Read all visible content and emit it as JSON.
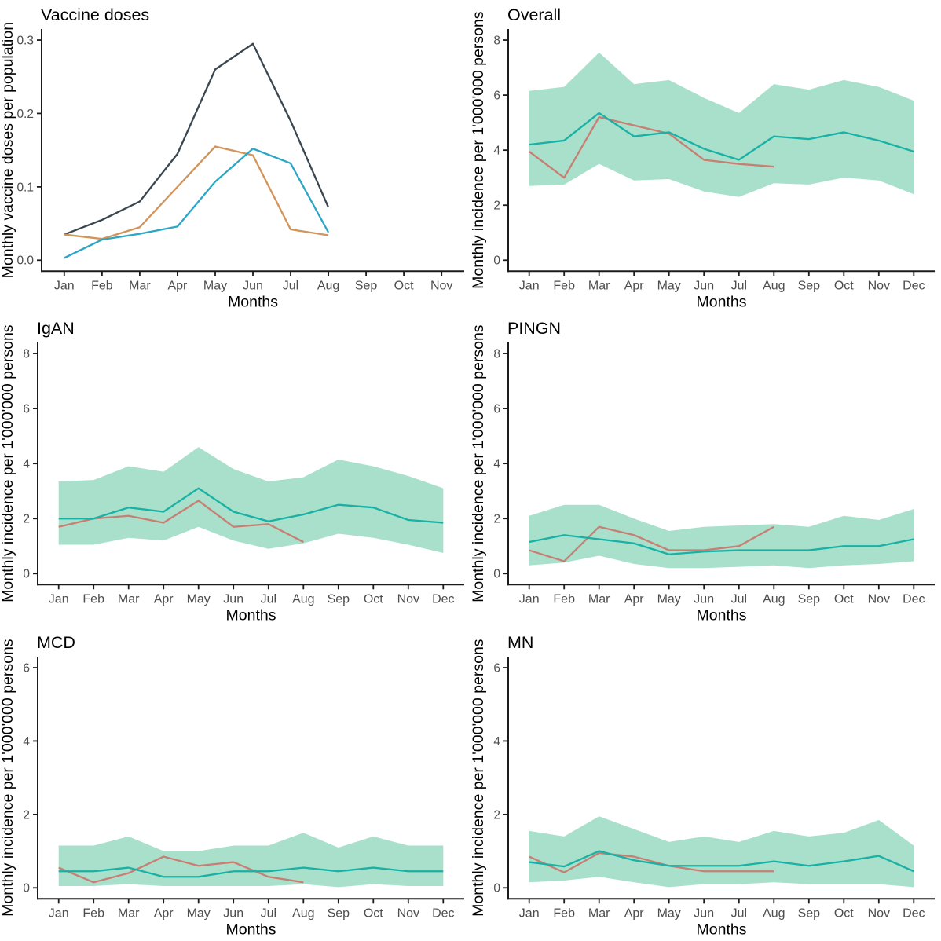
{
  "axis_style": {
    "axis_color": "#1B1B1B",
    "tick_label_color": "#4D4D4D",
    "text_color": "#000000",
    "ribbon_color": "#A9E0CB",
    "teal_line_color": "#18B1A5",
    "red_line_color": "#C87E73",
    "dark_line_color": "#3A4750",
    "orange_line_color": "#D1945A",
    "blue_line_color": "#2BA6C6"
  },
  "chart_data": [
    {
      "id": "vaccine-doses",
      "type": "line",
      "title": "Vaccine doses",
      "xlabel": "Months",
      "ylabel": "Monthly vaccine doses per population",
      "categories": [
        "Jan",
        "Feb",
        "Mar",
        "Apr",
        "May",
        "Jun",
        "Jul",
        "Aug",
        "Sep",
        "Oct",
        "Nov"
      ],
      "ylim": [
        0,
        0.3
      ],
      "yticks": {
        "values": [
          0,
          0.1,
          0.2,
          0.3
        ],
        "labels": [
          "0.0",
          "0.1",
          "0.2",
          "0.3"
        ]
      },
      "grid": false,
      "legend": "none",
      "series": [
        {
          "name": "dark-navy-line",
          "color": "#3A4750",
          "values": [
            0.035,
            0.055,
            0.08,
            0.145,
            0.26,
            0.295,
            0.19,
            0.072
          ]
        },
        {
          "name": "orange-line",
          "color": "#D1945A",
          "values": [
            0.035,
            0.029,
            0.045,
            0.1,
            0.155,
            0.143,
            0.042,
            0.034
          ]
        },
        {
          "name": "blue-line",
          "color": "#2BA6C6",
          "values": [
            0.003,
            0.028,
            0.036,
            0.046,
            0.107,
            0.152,
            0.132,
            0.038
          ]
        }
      ]
    },
    {
      "id": "overall",
      "type": "line",
      "title": "Overall",
      "xlabel": "Months",
      "ylabel": "Monthly incidence per 1'000'000 persons",
      "categories": [
        "Jan",
        "Feb",
        "Mar",
        "Apr",
        "May",
        "Jun",
        "Jul",
        "Aug",
        "Sep",
        "Oct",
        "Nov",
        "Dec"
      ],
      "ylim": [
        0,
        8
      ],
      "yticks": {
        "values": [
          0,
          2,
          4,
          6,
          8
        ],
        "labels": [
          "0",
          "2",
          "4",
          "6",
          "8"
        ]
      },
      "grid": false,
      "legend": "none",
      "band": {
        "name": "confidence-ribbon",
        "color": "#A9E0CB",
        "upper": [
          6.15,
          6.3,
          7.55,
          6.4,
          6.55,
          5.9,
          5.35,
          6.4,
          6.2,
          6.55,
          6.3,
          5.8
        ],
        "lower": [
          2.7,
          2.75,
          3.5,
          2.9,
          2.95,
          2.5,
          2.3,
          2.8,
          2.75,
          3.0,
          2.9,
          2.4
        ]
      },
      "series": [
        {
          "name": "red-line",
          "color": "#C87E73",
          "values": [
            3.95,
            3.0,
            5.2,
            4.9,
            4.6,
            3.65,
            3.5,
            3.4
          ]
        },
        {
          "name": "teal-line",
          "color": "#18B1A5",
          "values": [
            4.2,
            4.35,
            5.35,
            4.5,
            4.65,
            4.05,
            3.65,
            4.5,
            4.4,
            4.65,
            4.35,
            3.95
          ]
        }
      ]
    },
    {
      "id": "igan",
      "type": "line",
      "title": "IgAN",
      "xlabel": "Months",
      "ylabel": "Monthly incidence per 1'000'000 persons",
      "categories": [
        "Jan",
        "Feb",
        "Mar",
        "Apr",
        "May",
        "Jun",
        "Jul",
        "Aug",
        "Sep",
        "Oct",
        "Nov",
        "Dec"
      ],
      "ylim": [
        0,
        8
      ],
      "yticks": {
        "values": [
          0,
          2,
          4,
          6,
          8
        ],
        "labels": [
          "0",
          "2",
          "4",
          "6",
          "8"
        ]
      },
      "grid": false,
      "legend": "none",
      "band": {
        "name": "confidence-ribbon",
        "color": "#A9E0CB",
        "upper": [
          3.35,
          3.4,
          3.9,
          3.7,
          4.6,
          3.8,
          3.35,
          3.5,
          4.15,
          3.9,
          3.55,
          3.1
        ],
        "lower": [
          1.05,
          1.05,
          1.3,
          1.2,
          1.7,
          1.2,
          0.9,
          1.1,
          1.45,
          1.3,
          1.05,
          0.75
        ]
      },
      "series": [
        {
          "name": "red-line",
          "color": "#C87E73",
          "values": [
            1.7,
            2.0,
            2.1,
            1.85,
            2.65,
            1.7,
            1.8,
            1.15
          ]
        },
        {
          "name": "teal-line",
          "color": "#18B1A5",
          "values": [
            2.0,
            2.0,
            2.4,
            2.25,
            3.1,
            2.25,
            1.9,
            2.15,
            2.5,
            2.4,
            1.95,
            1.85
          ]
        }
      ]
    },
    {
      "id": "pingn",
      "type": "line",
      "title": "PINGN",
      "xlabel": "Months",
      "ylabel": "Monthly incidence per 1'000'000 persons",
      "categories": [
        "Jan",
        "Feb",
        "Mar",
        "Apr",
        "May",
        "Jun",
        "Jul",
        "Aug",
        "Sep",
        "Oct",
        "Nov",
        "Dec"
      ],
      "ylim": [
        0,
        8
      ],
      "yticks": {
        "values": [
          0,
          2,
          4,
          6,
          8
        ],
        "labels": [
          "0",
          "2",
          "4",
          "6",
          "8"
        ]
      },
      "grid": false,
      "legend": "none",
      "band": {
        "name": "confidence-ribbon",
        "color": "#A9E0CB",
        "upper": [
          2.1,
          2.5,
          2.5,
          2.0,
          1.55,
          1.7,
          1.75,
          1.8,
          1.7,
          2.1,
          1.95,
          2.35
        ],
        "lower": [
          0.3,
          0.4,
          0.65,
          0.35,
          0.2,
          0.2,
          0.25,
          0.3,
          0.2,
          0.3,
          0.35,
          0.45
        ]
      },
      "series": [
        {
          "name": "red-line",
          "color": "#C87E73",
          "values": [
            0.85,
            0.45,
            1.7,
            1.4,
            0.85,
            0.85,
            1.0,
            1.7
          ]
        },
        {
          "name": "teal-line",
          "color": "#18B1A5",
          "values": [
            1.15,
            1.4,
            1.25,
            1.1,
            0.7,
            0.8,
            0.85,
            0.85,
            0.85,
            1.0,
            1.0,
            1.25
          ]
        }
      ]
    },
    {
      "id": "mcd",
      "type": "line",
      "title": "MCD",
      "xlabel": "Months",
      "ylabel": "Monthly incidence per 1'000'000 persons",
      "categories": [
        "Jan",
        "Feb",
        "Mar",
        "Apr",
        "May",
        "Jun",
        "Jul",
        "Aug",
        "Sep",
        "Oct",
        "Nov",
        "Dec"
      ],
      "ylim": [
        0,
        6
      ],
      "yticks": {
        "values": [
          0,
          2,
          4,
          6
        ],
        "labels": [
          "0",
          "2",
          "4",
          "6"
        ]
      },
      "grid": false,
      "legend": "none",
      "band": {
        "name": "confidence-ribbon",
        "color": "#A9E0CB",
        "upper": [
          1.15,
          1.15,
          1.4,
          1.0,
          1.0,
          1.15,
          1.15,
          1.5,
          1.1,
          1.4,
          1.15,
          1.15
        ],
        "lower": [
          0.05,
          0.05,
          0.1,
          0.05,
          0.05,
          0.05,
          0.05,
          0.1,
          0.02,
          0.1,
          0.05,
          0.05
        ]
      },
      "series": [
        {
          "name": "red-line",
          "color": "#C87E73",
          "values": [
            0.55,
            0.15,
            0.4,
            0.85,
            0.6,
            0.7,
            0.3,
            0.15
          ]
        },
        {
          "name": "teal-line",
          "color": "#18B1A5",
          "values": [
            0.45,
            0.45,
            0.55,
            0.3,
            0.3,
            0.45,
            0.45,
            0.55,
            0.45,
            0.55,
            0.45,
            0.45
          ]
        }
      ]
    },
    {
      "id": "mn",
      "type": "line",
      "title": "MN",
      "xlabel": "Months",
      "ylabel": "Monthly incidence per 1'000'000 persons",
      "categories": [
        "Jan",
        "Feb",
        "Mar",
        "Apr",
        "May",
        "Jun",
        "Jul",
        "Aug",
        "Sep",
        "Oct",
        "Nov",
        "Dec"
      ],
      "ylim": [
        0,
        6
      ],
      "yticks": {
        "values": [
          0,
          2,
          4,
          6
        ],
        "labels": [
          "0",
          "2",
          "4",
          "6"
        ]
      },
      "grid": false,
      "legend": "none",
      "band": {
        "name": "confidence-ribbon",
        "color": "#A9E0CB",
        "upper": [
          1.55,
          1.4,
          1.95,
          1.6,
          1.25,
          1.4,
          1.25,
          1.55,
          1.4,
          1.5,
          1.85,
          1.15
        ],
        "lower": [
          0.15,
          0.2,
          0.3,
          0.15,
          0.02,
          0.1,
          0.1,
          0.15,
          0.1,
          0.1,
          0.1,
          0.02
        ]
      },
      "series": [
        {
          "name": "red-line",
          "color": "#C87E73",
          "values": [
            0.85,
            0.42,
            0.95,
            0.85,
            0.6,
            0.45,
            0.45,
            0.45
          ]
        },
        {
          "name": "teal-line",
          "color": "#18B1A5",
          "values": [
            0.7,
            0.58,
            1.0,
            0.75,
            0.6,
            0.6,
            0.6,
            0.72,
            0.6,
            0.72,
            0.87,
            0.45
          ]
        }
      ]
    }
  ]
}
